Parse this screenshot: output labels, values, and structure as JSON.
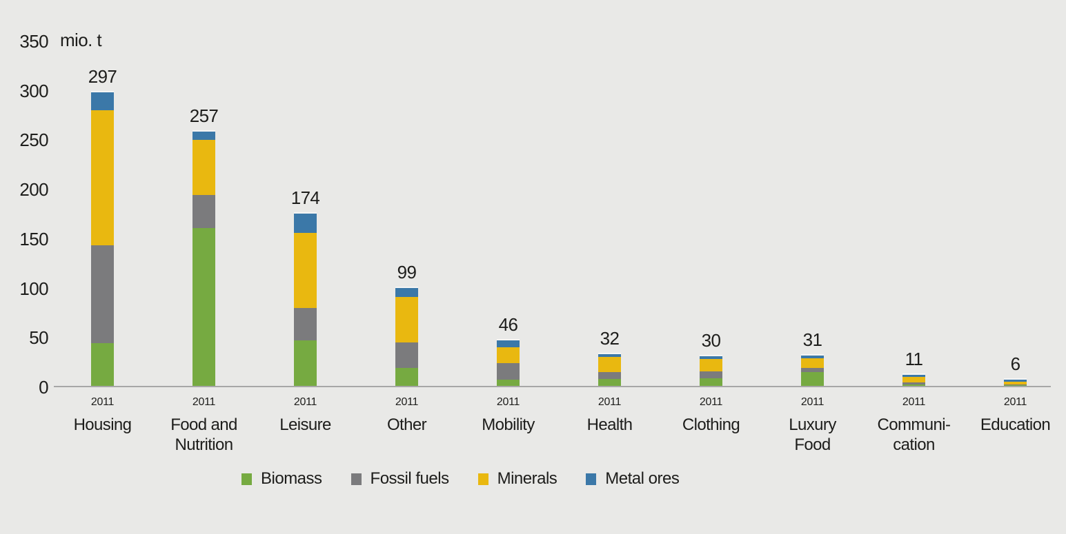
{
  "page": {
    "background_color": "#e9e9e7",
    "text_color": "#1d1d1b",
    "axis_line_color": "#a7a7a7"
  },
  "chart_data": {
    "type": "bar",
    "stacked": true,
    "unit_label": "mio. t",
    "y_axis": {
      "min": 0,
      "max": 350,
      "ticks": [
        0,
        50,
        100,
        150,
        200,
        250,
        300,
        350
      ],
      "gridlines": false
    },
    "legend_position": "bottom",
    "categories": [
      {
        "label": "Housing",
        "lines": [
          "Housing"
        ],
        "year": "2011",
        "total": 297
      },
      {
        "label": "Food and Nutrition",
        "lines": [
          "Food and",
          "Nutrition"
        ],
        "year": "2011",
        "total": 257
      },
      {
        "label": "Leisure",
        "lines": [
          "Leisure"
        ],
        "year": "2011",
        "total": 174
      },
      {
        "label": "Other",
        "lines": [
          "Other"
        ],
        "year": "2011",
        "total": 99
      },
      {
        "label": "Mobility",
        "lines": [
          "Mobility"
        ],
        "year": "2011",
        "total": 46
      },
      {
        "label": "Health",
        "lines": [
          "Health"
        ],
        "year": "2011",
        "total": 32
      },
      {
        "label": "Clothing",
        "lines": [
          "Clothing"
        ],
        "year": "2011",
        "total": 30
      },
      {
        "label": "Luxury Food",
        "lines": [
          "Luxury",
          "Food"
        ],
        "year": "2011",
        "total": 31
      },
      {
        "label": "Communication",
        "lines": [
          "Communi-",
          "cation"
        ],
        "year": "2011",
        "total": 11
      },
      {
        "label": "Education",
        "lines": [
          "Education"
        ],
        "year": "2011",
        "total": 6
      }
    ],
    "totals": [
      297,
      257,
      174,
      99,
      46,
      32,
      30,
      31,
      11,
      6
    ],
    "series": [
      {
        "name": "Biomass",
        "color": "#76aa41",
        "values": [
          43,
          160,
          46,
          18,
          6,
          7,
          8,
          14,
          1.5,
          1
        ]
      },
      {
        "name": "Fossil fuels",
        "color": "#7b7b7d",
        "values": [
          99,
          33,
          33,
          26,
          17,
          7,
          7,
          4,
          2,
          0.5
        ]
      },
      {
        "name": "Minerals",
        "color": "#e9b810",
        "values": [
          137,
          56,
          76,
          46,
          16,
          15,
          12,
          10,
          5.5,
          2.5
        ]
      },
      {
        "name": "Metal ores",
        "color": "#3b78a8",
        "values": [
          18,
          8,
          19,
          9,
          7,
          3,
          3,
          3,
          2,
          2
        ]
      }
    ]
  }
}
